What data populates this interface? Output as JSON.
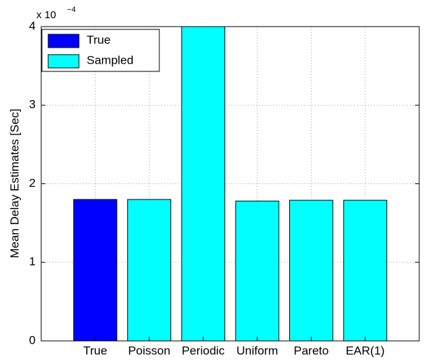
{
  "chart_data": {
    "type": "bar",
    "y_label": "Mean Delay Estimates [Sec]",
    "y_multiplier": {
      "base": "x 10",
      "exponent": "−4"
    },
    "categories": [
      "True",
      "Poisson",
      "Periodic",
      "Uniform",
      "Pareto",
      "EAR(1)"
    ],
    "series": [
      {
        "name": "True",
        "color": "#0000ff",
        "values": [
          1.8,
          null,
          null,
          null,
          null,
          null
        ]
      },
      {
        "name": "Sampled",
        "color": "#00ffff",
        "values": [
          null,
          1.8,
          4,
          1.78,
          1.79,
          1.79
        ]
      }
    ],
    "ylim": [
      0,
      4
    ],
    "yticks": [
      0,
      1,
      2,
      3,
      4
    ],
    "grid": true,
    "legend": "upper-left"
  }
}
